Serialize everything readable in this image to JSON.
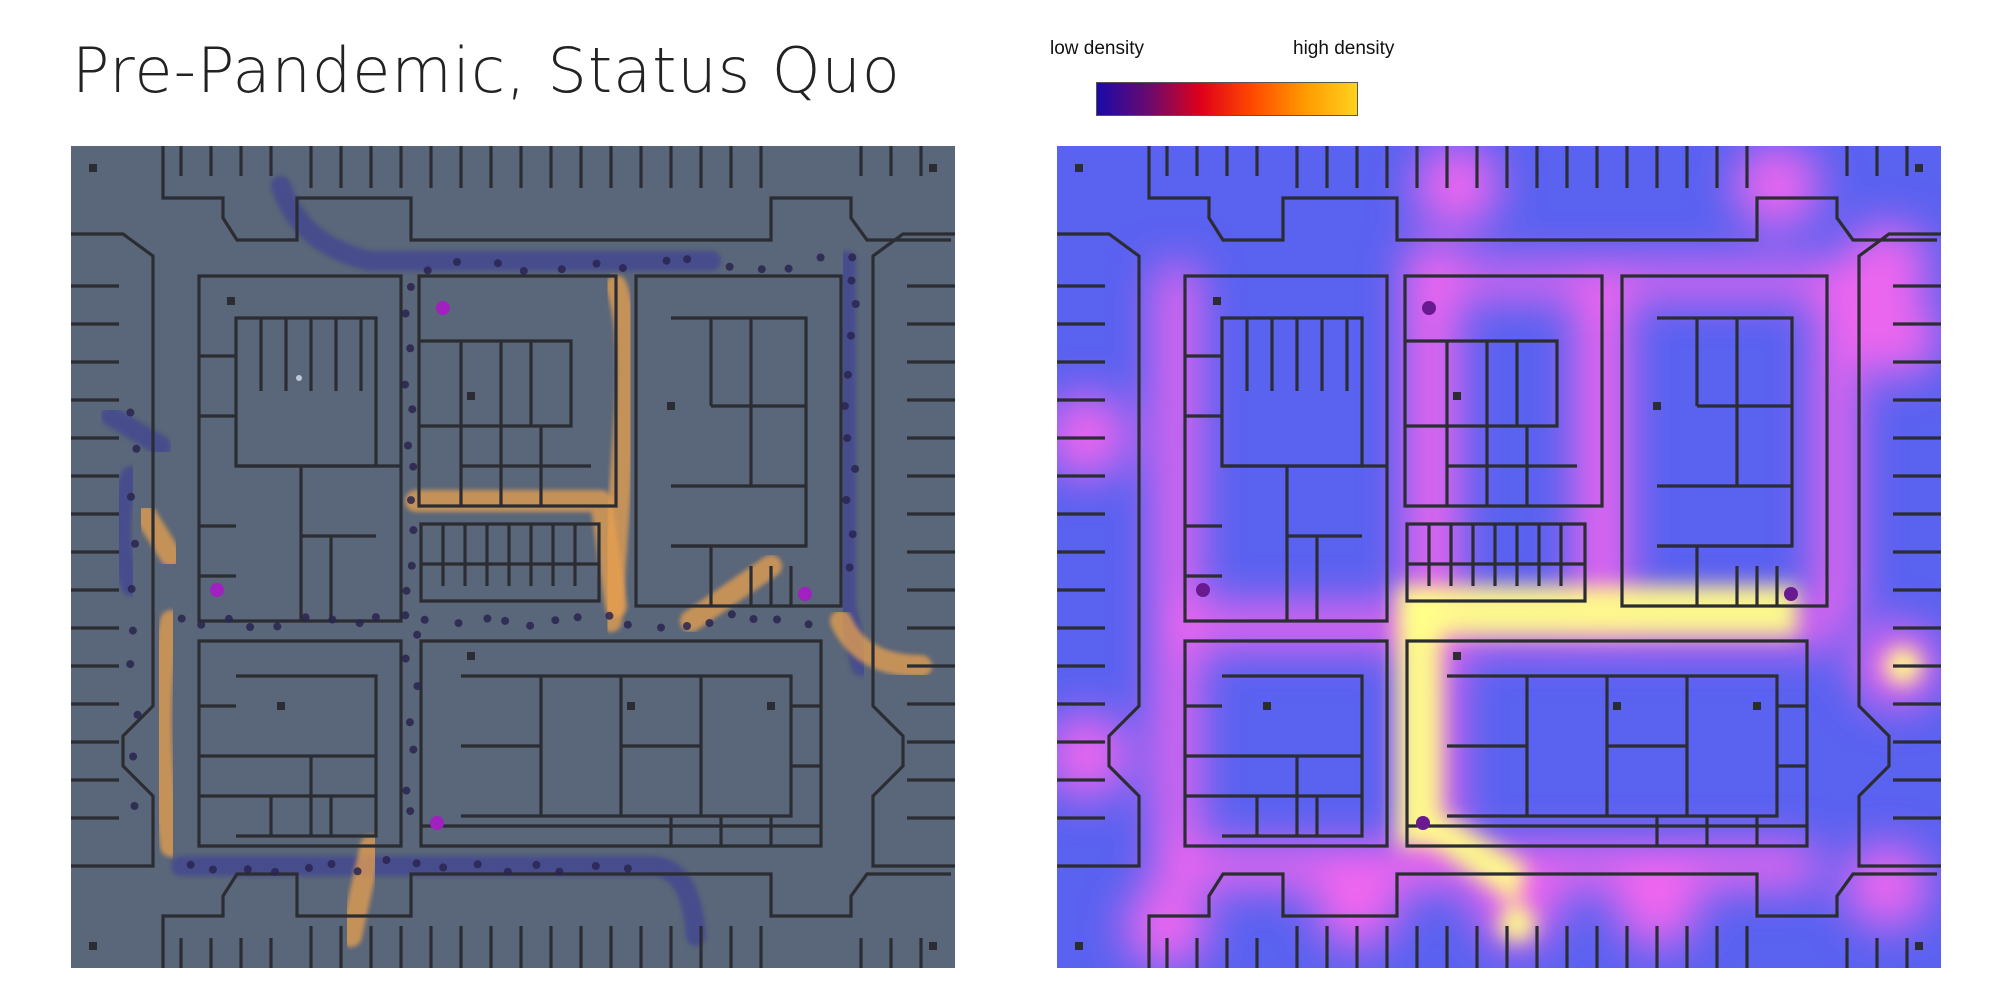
{
  "title": "Pre-Pandemic, Status Quo",
  "legend": {
    "low_label": "low density",
    "high_label": "high density",
    "gradient_colors": [
      "#1a0aa8",
      "#6a0a6e",
      "#e0001a",
      "#ff4a00",
      "#ff9a00",
      "#ffd21e"
    ]
  },
  "panels": [
    {
      "id": "paths",
      "background_color": "#5a6679",
      "path_colors": [
        "#e8a050",
        "#3b3c99"
      ]
    },
    {
      "id": "heatmap",
      "background_color": "#5a62f0",
      "heat_colors": [
        "#ff66ee",
        "#ffff88"
      ]
    }
  ],
  "wall_color": "#2b2d33"
}
